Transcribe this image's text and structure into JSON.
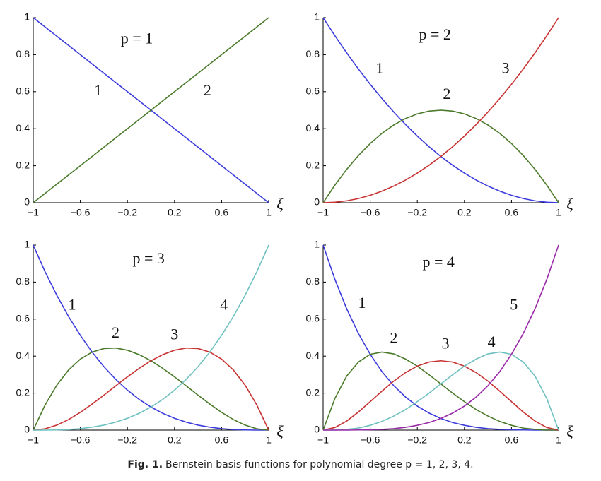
{
  "chart_data": [
    {
      "type": "line",
      "title": "p = 1",
      "xlabel": "ξ",
      "x": [
        -1,
        -0.9,
        -0.8,
        -0.7,
        -0.6,
        -0.5,
        -0.4,
        -0.3,
        -0.2,
        -0.1,
        0,
        0.1,
        0.2,
        0.3,
        0.4,
        0.5,
        0.6,
        0.7,
        0.8,
        0.9,
        1
      ],
      "xlim": [
        -1,
        1
      ],
      "ylim": [
        0,
        1
      ],
      "xticks": [
        {
          "value": -1,
          "label": "−1"
        },
        {
          "value": -0.6,
          "label": "−0.6"
        },
        {
          "value": -0.2,
          "label": "−0.2"
        },
        0.2,
        0.6,
        1
      ],
      "yticks": [
        0,
        0.2,
        0.4,
        0.6,
        0.8,
        1
      ],
      "series": [
        {
          "name": "1",
          "color": "#3c3cdc",
          "values": [
            1,
            0.95,
            0.9,
            0.85,
            0.8,
            0.75,
            0.7,
            0.65,
            0.6,
            0.55,
            0.5,
            0.45,
            0.4,
            0.35,
            0.3,
            0.25,
            0.2,
            0.15,
            0.1,
            0.05,
            0
          ]
        },
        {
          "name": "2",
          "color": "#4a7a2a",
          "values": [
            0,
            0.05,
            0.1,
            0.15,
            0.2,
            0.25,
            0.3,
            0.35,
            0.4,
            0.45,
            0.5,
            0.55,
            0.6,
            0.65,
            0.7,
            0.75,
            0.8,
            0.85,
            0.9,
            0.95,
            1
          ]
        }
      ]
    },
    {
      "type": "line",
      "title": "p = 2",
      "xlabel": "ξ",
      "x": [
        -1,
        -0.9,
        -0.8,
        -0.7,
        -0.6,
        -0.5,
        -0.4,
        -0.3,
        -0.2,
        -0.1,
        0,
        0.1,
        0.2,
        0.3,
        0.4,
        0.5,
        0.6,
        0.7,
        0.8,
        0.9,
        1
      ],
      "xlim": [
        -1,
        1
      ],
      "ylim": [
        0,
        1
      ],
      "xticks": [
        {
          "value": -1,
          "label": "−1"
        },
        {
          "value": -0.6,
          "label": "−0.6"
        },
        {
          "value": -0.2,
          "label": "−0.2"
        },
        0.2,
        0.6,
        1
      ],
      "yticks": [
        0,
        0.2,
        0.4,
        0.6,
        0.8,
        1
      ],
      "series": [
        {
          "name": "1",
          "color": "#3c3cdc",
          "values": [
            1,
            0.9025,
            0.81,
            0.7225,
            0.64,
            0.5625,
            0.49,
            0.4225,
            0.36,
            0.3025,
            0.25,
            0.2025,
            0.16,
            0.1225,
            0.09,
            0.0625,
            0.04,
            0.0225,
            0.01,
            0.0025,
            0
          ]
        },
        {
          "name": "2",
          "color": "#4a7a2a",
          "values": [
            0,
            0.095,
            0.18,
            0.255,
            0.32,
            0.375,
            0.42,
            0.455,
            0.48,
            0.495,
            0.5,
            0.495,
            0.48,
            0.455,
            0.42,
            0.375,
            0.32,
            0.255,
            0.18,
            0.095,
            0
          ]
        },
        {
          "name": "3",
          "color": "#c83232",
          "values": [
            0,
            0.0025,
            0.01,
            0.0225,
            0.04,
            0.0625,
            0.09,
            0.1225,
            0.16,
            0.2025,
            0.25,
            0.3025,
            0.36,
            0.4225,
            0.49,
            0.5625,
            0.64,
            0.7225,
            0.81,
            0.9025,
            1
          ]
        }
      ]
    },
    {
      "type": "line",
      "title": "p = 3",
      "xlabel": "ξ",
      "x": [
        -1,
        -0.9,
        -0.8,
        -0.7,
        -0.6,
        -0.5,
        -0.4,
        -0.3,
        -0.2,
        -0.1,
        0,
        0.1,
        0.2,
        0.3,
        0.4,
        0.5,
        0.6,
        0.7,
        0.8,
        0.9,
        1
      ],
      "xlim": [
        -1,
        1
      ],
      "ylim": [
        0,
        1
      ],
      "xticks": [
        {
          "value": -1,
          "label": "−1"
        },
        {
          "value": -0.6,
          "label": "−0.6"
        },
        {
          "value": -0.2,
          "label": "−0.2"
        },
        0.2,
        0.6,
        1
      ],
      "yticks": [
        0,
        0.2,
        0.4,
        0.6,
        0.8,
        1
      ],
      "series": [
        {
          "name": "1",
          "color": "#3c3cdc",
          "values": [
            1,
            0.857,
            0.729,
            0.614,
            0.512,
            0.422,
            0.343,
            0.275,
            0.216,
            0.166,
            0.125,
            0.091,
            0.064,
            0.043,
            0.027,
            0.016,
            0.008,
            0.003,
            0.001,
            0,
            0
          ]
        },
        {
          "name": "2",
          "color": "#4a7a2a",
          "values": [
            0,
            0.135,
            0.243,
            0.325,
            0.384,
            0.422,
            0.441,
            0.444,
            0.432,
            0.408,
            0.375,
            0.334,
            0.288,
            0.239,
            0.189,
            0.141,
            0.096,
            0.057,
            0.027,
            0.007,
            0
          ]
        },
        {
          "name": "3",
          "color": "#c83232",
          "values": [
            0,
            0.007,
            0.027,
            0.057,
            0.096,
            0.141,
            0.189,
            0.239,
            0.288,
            0.334,
            0.375,
            0.408,
            0.432,
            0.444,
            0.441,
            0.422,
            0.384,
            0.325,
            0.243,
            0.135,
            0
          ]
        },
        {
          "name": "4",
          "color": "#6fc0c0",
          "values": [
            0,
            0,
            0.001,
            0.003,
            0.008,
            0.016,
            0.027,
            0.043,
            0.064,
            0.091,
            0.125,
            0.166,
            0.216,
            0.275,
            0.343,
            0.422,
            0.512,
            0.614,
            0.729,
            0.857,
            1
          ]
        }
      ]
    },
    {
      "type": "line",
      "title": "p = 4",
      "xlabel": "ξ",
      "x": [
        -1,
        -0.9,
        -0.8,
        -0.7,
        -0.6,
        -0.5,
        -0.4,
        -0.3,
        -0.2,
        -0.1,
        0,
        0.1,
        0.2,
        0.3,
        0.4,
        0.5,
        0.6,
        0.7,
        0.8,
        0.9,
        1
      ],
      "xlim": [
        -1,
        1
      ],
      "ylim": [
        0,
        1
      ],
      "xticks": [
        {
          "value": -1,
          "label": "−1"
        },
        {
          "value": -0.6,
          "label": "−0.6"
        },
        {
          "value": -0.2,
          "label": "−0.2"
        },
        0.2,
        0.6,
        1
      ],
      "yticks": [
        0,
        0.2,
        0.4,
        0.6,
        0.8,
        1
      ],
      "series": [
        {
          "name": "1",
          "color": "#3c3cdc",
          "values": [
            1,
            0.815,
            0.656,
            0.522,
            0.41,
            0.316,
            0.24,
            0.179,
            0.13,
            0.092,
            0.063,
            0.041,
            0.026,
            0.015,
            0.008,
            0.004,
            0.002,
            0.001,
            0,
            0,
            0
          ]
        },
        {
          "name": "2",
          "color": "#4a7a2a",
          "values": [
            0,
            0.171,
            0.292,
            0.368,
            0.41,
            0.422,
            0.412,
            0.384,
            0.346,
            0.299,
            0.25,
            0.2,
            0.154,
            0.111,
            0.076,
            0.047,
            0.026,
            0.011,
            0.004,
            0,
            0
          ]
        },
        {
          "name": "3",
          "color": "#c83232",
          "values": [
            0,
            0.014,
            0.049,
            0.098,
            0.154,
            0.211,
            0.265,
            0.311,
            0.346,
            0.368,
            0.375,
            0.368,
            0.346,
            0.311,
            0.265,
            0.211,
            0.154,
            0.098,
            0.049,
            0.014,
            0
          ]
        },
        {
          "name": "4",
          "color": "#6fc0c0",
          "values": [
            0,
            0,
            0.004,
            0.011,
            0.026,
            0.047,
            0.076,
            0.111,
            0.154,
            0.2,
            0.25,
            0.299,
            0.346,
            0.384,
            0.412,
            0.422,
            0.41,
            0.368,
            0.292,
            0.171,
            0
          ]
        },
        {
          "name": "5",
          "color": "#9a2aa8",
          "values": [
            0,
            0,
            0,
            0.001,
            0.002,
            0.004,
            0.008,
            0.015,
            0.026,
            0.041,
            0.063,
            0.092,
            0.13,
            0.179,
            0.24,
            0.316,
            0.41,
            0.522,
            0.656,
            0.815,
            1
          ]
        }
      ]
    }
  ],
  "caption": {
    "label": "Fig. 1.",
    "text": "Bernstein basis functions for polynomial degree p = 1, 2, 3, 4."
  }
}
